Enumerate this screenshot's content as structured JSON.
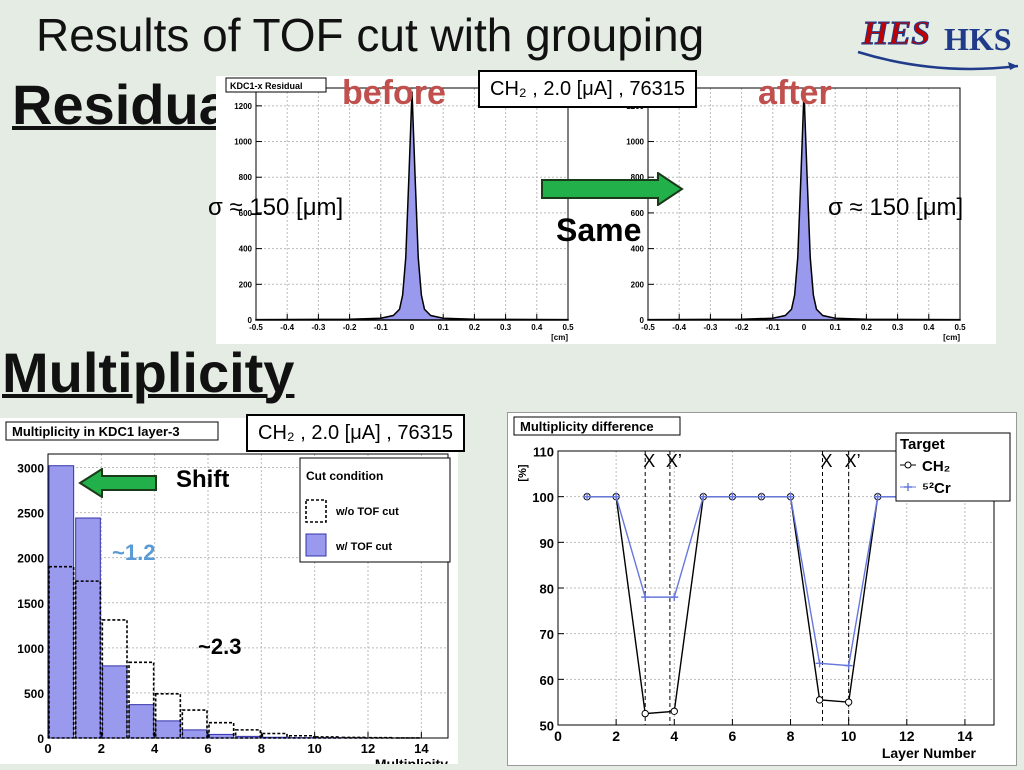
{
  "slide": {
    "title": "Results of TOF cut with grouping",
    "residual_heading": "Residual",
    "multiplicity_heading": "Multiplicity",
    "before_label": "before",
    "after_label": "after",
    "condition_text": "CH₂ , 2.0 [μA] , 76315",
    "sigma_before": "σ ≈ 150 [μm]",
    "sigma_after": "σ ≈ 150 [μm]",
    "same_label": "Same",
    "shift_label": "Shift",
    "ratio_1": "~1.2",
    "ratio_2": "~2.3",
    "logo": {
      "left": "HES",
      "right": "HKS"
    },
    "colors": {
      "accent_red": "#c0504d",
      "arrow_green": "#22b04a",
      "fill_blue": "#9999ee",
      "ratio_blue": "#5b9bd5"
    }
  },
  "chart_data": [
    {
      "id": "residual-before",
      "type": "line",
      "title": "KDC1-x Residual",
      "xlabel": "[cm]",
      "ylabel": "",
      "xlim": [
        -0.5,
        0.5
      ],
      "ylim": [
        0,
        1300
      ],
      "x_ticks": [
        -0.5,
        -0.4,
        -0.3,
        -0.2,
        -0.1,
        0,
        0.1,
        0.2,
        0.3,
        0.4,
        0.5
      ],
      "y_ticks": [
        0,
        200,
        400,
        600,
        800,
        1000,
        1200
      ],
      "x": [
        -0.5,
        -0.2,
        -0.1,
        -0.06,
        -0.04,
        -0.03,
        -0.02,
        -0.01,
        0,
        0.01,
        0.02,
        0.03,
        0.04,
        0.06,
        0.1,
        0.2,
        0.5
      ],
      "values": [
        2,
        4,
        10,
        25,
        60,
        140,
        350,
        800,
        1280,
        800,
        350,
        140,
        60,
        25,
        10,
        4,
        2
      ]
    },
    {
      "id": "residual-after",
      "type": "line",
      "title": "",
      "xlabel": "[cm]",
      "ylabel": "",
      "xlim": [
        -0.5,
        0.5
      ],
      "ylim": [
        0,
        1300
      ],
      "x_ticks": [
        -0.5,
        -0.4,
        -0.3,
        -0.2,
        -0.1,
        0,
        0.1,
        0.2,
        0.3,
        0.4,
        0.5
      ],
      "y_ticks": [
        0,
        200,
        400,
        600,
        800,
        1000,
        1200
      ],
      "x": [
        -0.5,
        -0.2,
        -0.1,
        -0.06,
        -0.04,
        -0.03,
        -0.02,
        -0.01,
        0,
        0.01,
        0.02,
        0.03,
        0.04,
        0.06,
        0.1,
        0.2,
        0.5
      ],
      "values": [
        2,
        4,
        10,
        25,
        60,
        140,
        350,
        800,
        1280,
        800,
        350,
        140,
        60,
        25,
        10,
        4,
        2
      ]
    },
    {
      "id": "multiplicity-hist",
      "type": "bar",
      "title": "Multiplicity in KDC1 layer-3",
      "xlabel": "Multiplicity",
      "ylabel": "",
      "xlim": [
        0,
        15
      ],
      "ylim": [
        0,
        3150
      ],
      "x_ticks": [
        0,
        2,
        4,
        6,
        8,
        10,
        12,
        14
      ],
      "y_ticks": [
        0,
        500,
        1000,
        1500,
        2000,
        2500,
        3000
      ],
      "legend_title": "Cut condition",
      "series": [
        {
          "name": "w/o TOF cut",
          "style": "dashed",
          "values": [
            1900,
            1740,
            1310,
            840,
            490,
            310,
            170,
            90,
            50,
            25,
            12,
            6,
            3,
            1,
            0
          ]
        },
        {
          "name": "w/  TOF cut",
          "style": "filled",
          "values": [
            3020,
            2440,
            800,
            370,
            190,
            90,
            40,
            18,
            8,
            4,
            2,
            1,
            0,
            0,
            0
          ]
        }
      ]
    },
    {
      "id": "multiplicity-difference",
      "type": "line",
      "title": "Multiplicity difference",
      "xlabel": "Layer Number",
      "ylabel": "[%]",
      "xlim": [
        0,
        15
      ],
      "ylim": [
        50,
        110
      ],
      "x_ticks": [
        0,
        2,
        4,
        6,
        8,
        10,
        12,
        14
      ],
      "y_ticks": [
        50,
        60,
        70,
        80,
        90,
        100,
        110
      ],
      "legend_title": "Target",
      "series": [
        {
          "name": "CH₂",
          "x": [
            1,
            2,
            3,
            4,
            5,
            6,
            7,
            8,
            9,
            10,
            11,
            12
          ],
          "values": [
            100,
            100,
            52.5,
            53,
            100,
            100,
            100,
            100,
            55.5,
            55,
            100,
            100
          ]
        },
        {
          "name": "⁵²Cr",
          "x": [
            1,
            2,
            3,
            4,
            5,
            6,
            7,
            8,
            9,
            10,
            11,
            12
          ],
          "values": [
            100,
            100,
            78,
            78,
            100,
            100,
            100,
            100,
            63.5,
            63,
            100,
            100
          ]
        }
      ],
      "markers": [
        {
          "x": 3,
          "label": "X"
        },
        {
          "x": 3.85,
          "label": "X’"
        },
        {
          "x": 9.1,
          "label": "X"
        },
        {
          "x": 10,
          "label": "X’"
        }
      ]
    }
  ]
}
